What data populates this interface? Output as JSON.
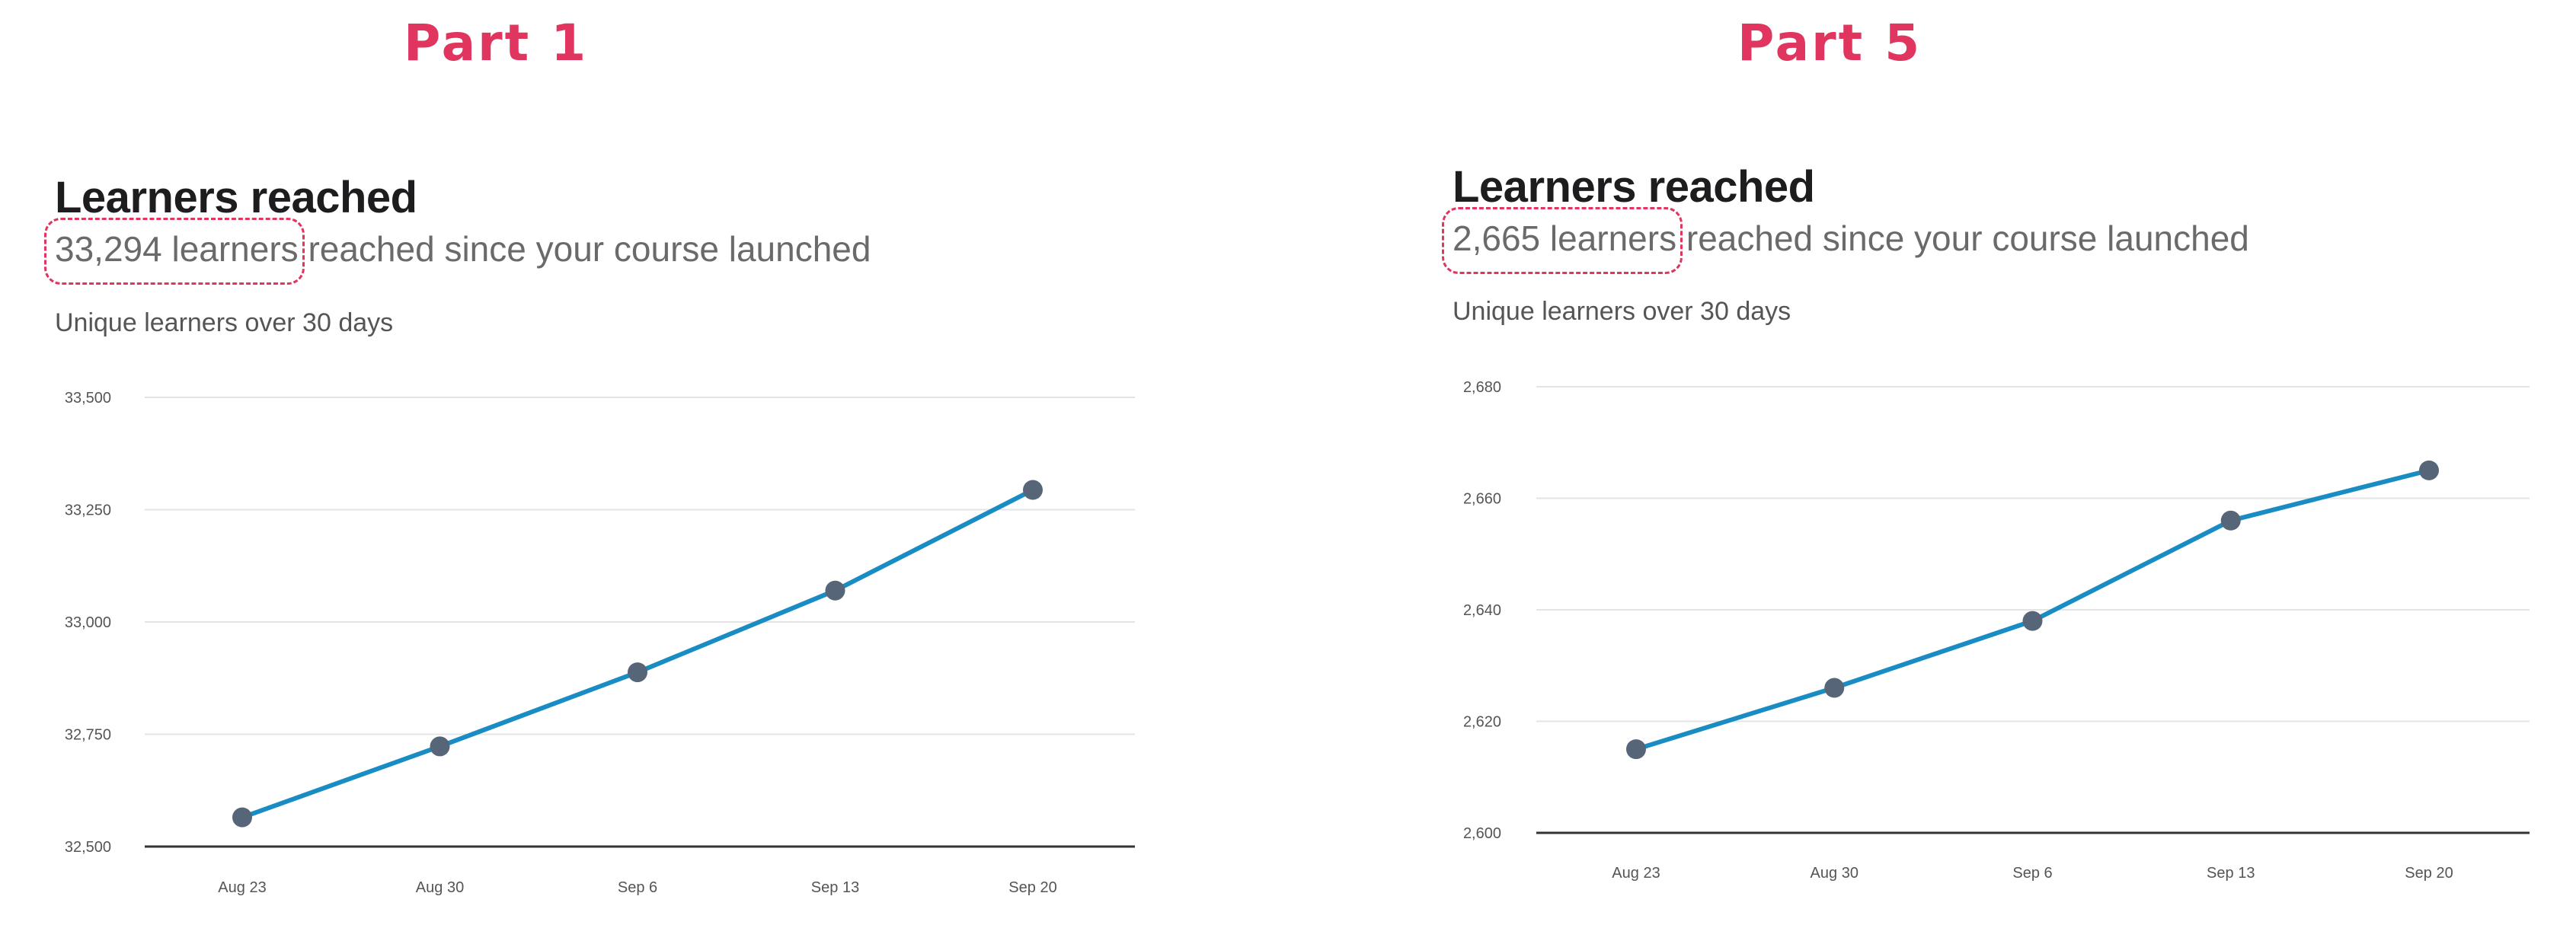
{
  "panels": [
    {
      "part_label": "Part 1",
      "title": "Learners reached",
      "subtitle_highlight": "33,294 learners",
      "subtitle_rest": " reached since your course launched",
      "description": "Unique learners over 30 days"
    },
    {
      "part_label": "Part 5",
      "title": "Learners reached",
      "subtitle_highlight": "2,665 learners",
      "subtitle_rest": " reached since your course launched",
      "description": "Unique learners over 30 days"
    }
  ],
  "colors": {
    "accent": "#e0355f",
    "line": "#1a8cc4",
    "point": "#566577",
    "grid": "#e4e4e4",
    "baseline": "#333333"
  },
  "chart_data": [
    {
      "type": "line",
      "categories": [
        "Aug 23",
        "Aug 30",
        "Sep 6",
        "Sep 13",
        "Sep 20"
      ],
      "series": [
        {
          "values": [
            32565,
            32723,
            32888,
            33070,
            33294
          ]
        }
      ],
      "ylim": [
        32500,
        33500
      ],
      "yticks": [
        32500,
        32750,
        33000,
        33250,
        33500
      ],
      "ytick_labels": [
        "32,500",
        "32,750",
        "33,000",
        "33,250",
        "33,500"
      ],
      "grid": true,
      "legend": "none"
    },
    {
      "type": "line",
      "categories": [
        "Aug 23",
        "Aug 30",
        "Sep 6",
        "Sep 13",
        "Sep 20"
      ],
      "series": [
        {
          "values": [
            2615,
            2626,
            2638,
            2656,
            2665
          ]
        }
      ],
      "ylim": [
        2600,
        2680
      ],
      "yticks": [
        2600,
        2620,
        2640,
        2660,
        2680
      ],
      "ytick_labels": [
        "2,600",
        "2,620",
        "2,640",
        "2,660",
        "2,680"
      ],
      "grid": true,
      "legend": "none"
    }
  ]
}
